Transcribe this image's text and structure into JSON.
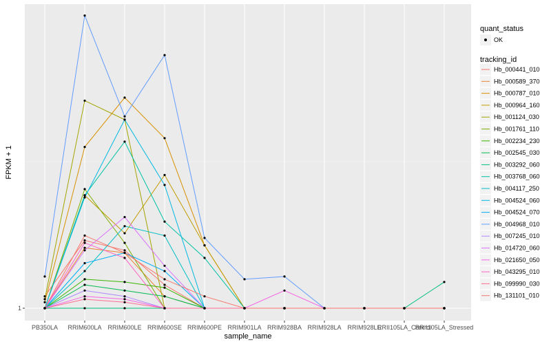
{
  "chart_data": {
    "type": "line",
    "xlabel": "sample_name",
    "ylabel": "FPKM + 1",
    "y_tick_labels": [
      "1"
    ],
    "categories": [
      "PB350LA",
      "RRIM600LA",
      "RRIM600LE",
      "RRIM600SE",
      "RRIM600PE",
      "RRIM901LA",
      "RRIM928BA",
      "RRIM928LA",
      "RRIM928LE",
      "RRII105LA_Control",
      "RRII105LA_Stressed"
    ],
    "legend_placement": "right",
    "grid": true,
    "y_scale": "log",
    "ylim": [
      1,
      2.6
    ],
    "point_legend": {
      "title": "quant_status",
      "label": "OK"
    },
    "series_legend_title": "tracking_id",
    "series": [
      {
        "name": "Hb_000441_010",
        "color": "#F8766D",
        "values": [
          1.04,
          1.25,
          1.21,
          1.08,
          1.0,
          1.0,
          1.0,
          1.0,
          1.0,
          1.0,
          1.0
        ]
      },
      {
        "name": "Hb_000589_370",
        "color": "#EA8331",
        "values": [
          1.0,
          1.22,
          1.2,
          1.04,
          1.0,
          1.0,
          1.0,
          1.0,
          1.0,
          1.0,
          1.0
        ]
      },
      {
        "name": "Hb_000787_010",
        "color": "#D89000",
        "values": [
          1.02,
          1.7,
          2.0,
          1.75,
          1.23,
          1.0,
          1.0,
          1.0,
          1.0,
          1.0,
          1.0
        ]
      },
      {
        "name": "Hb_000964_160",
        "color": "#C09B00",
        "values": [
          1.0,
          1.45,
          1.28,
          1.55,
          1.23,
          1.0,
          1.0,
          1.0,
          1.0,
          1.0,
          1.0
        ]
      },
      {
        "name": "Hb_001124_030",
        "color": "#A3A500",
        "values": [
          1.03,
          1.98,
          1.86,
          1.0,
          1.0,
          1.0,
          1.0,
          1.0,
          1.0,
          1.0,
          1.0
        ]
      },
      {
        "name": "Hb_001761_110",
        "color": "#7CAE00",
        "values": [
          1.0,
          1.48,
          1.24,
          1.0,
          1.0,
          1.0,
          1.0,
          1.0,
          1.0,
          1.0,
          1.0
        ]
      },
      {
        "name": "Hb_002234_230",
        "color": "#39B600",
        "values": [
          1.0,
          1.1,
          1.09,
          1.07,
          1.0,
          1.0,
          1.0,
          1.0,
          1.0,
          1.0,
          1.0
        ]
      },
      {
        "name": "Hb_002545_030",
        "color": "#00BB4E",
        "values": [
          1.0,
          1.08,
          1.06,
          1.04,
          1.0,
          1.0,
          1.0,
          1.0,
          1.0,
          1.0,
          1.0
        ]
      },
      {
        "name": "Hb_003292_060",
        "color": "#00BF7D",
        "values": [
          1.0,
          1.0,
          1.0,
          1.0,
          1.0,
          1.0,
          1.0,
          1.0,
          1.0,
          1.0,
          1.09
        ]
      },
      {
        "name": "Hb_003768_060",
        "color": "#00C1A3",
        "values": [
          1.0,
          1.45,
          1.73,
          1.33,
          1.18,
          1.0,
          1.0,
          1.0,
          1.0,
          1.0,
          1.0
        ]
      },
      {
        "name": "Hb_004117_250",
        "color": "#00BFC4",
        "values": [
          1.0,
          1.13,
          1.31,
          1.27,
          1.0,
          1.0,
          1.0,
          1.0,
          1.0,
          1.0,
          1.0
        ]
      },
      {
        "name": "Hb_004524_060",
        "color": "#00B9E3",
        "values": [
          1.0,
          1.44,
          1.86,
          1.5,
          1.0,
          1.0,
          1.0,
          1.0,
          1.0,
          1.0,
          1.0
        ]
      },
      {
        "name": "Hb_004524_070",
        "color": "#00ADFA",
        "values": [
          1.0,
          1.16,
          1.2,
          1.13,
          1.0,
          1.0,
          1.0,
          1.0,
          1.0,
          1.0,
          1.0
        ]
      },
      {
        "name": "Hb_004968_010",
        "color": "#619CFF",
        "values": [
          1.11,
          2.62,
          1.88,
          2.3,
          1.26,
          1.1,
          1.11,
          1.0,
          1.0,
          1.0,
          1.0
        ]
      },
      {
        "name": "Hb_007245_010",
        "color": "#AE87FF",
        "values": [
          1.0,
          1.06,
          1.04,
          1.0,
          1.0,
          1.0,
          1.0,
          1.0,
          1.0,
          1.0,
          1.0
        ]
      },
      {
        "name": "Hb_014720_060",
        "color": "#DB72FB",
        "values": [
          1.0,
          1.21,
          1.35,
          1.15,
          1.0,
          1.0,
          1.0,
          1.0,
          1.0,
          1.0,
          1.0
        ]
      },
      {
        "name": "Hb_021650_050",
        "color": "#F564E3",
        "values": [
          1.0,
          1.04,
          1.03,
          1.0,
          1.0,
          1.0,
          1.06,
          1.0,
          1.0,
          1.0,
          1.0
        ]
      },
      {
        "name": "Hb_043295_010",
        "color": "#FF61C3",
        "values": [
          1.0,
          1.24,
          1.18,
          1.0,
          1.0,
          1.0,
          1.0,
          1.0,
          1.0,
          1.0,
          1.0
        ]
      },
      {
        "name": "Hb_099990_030",
        "color": "#FF6C91",
        "values": [
          1.0,
          1.03,
          1.02,
          1.0,
          1.0,
          1.0,
          1.0,
          1.0,
          1.0,
          1.0,
          1.0
        ]
      },
      {
        "name": "Hb_131101_010",
        "color": "#F8766D",
        "values": [
          1.0,
          1.27,
          1.2,
          1.1,
          1.04,
          1.0,
          1.0,
          1.0,
          1.0,
          1.0,
          1.0
        ]
      }
    ]
  }
}
